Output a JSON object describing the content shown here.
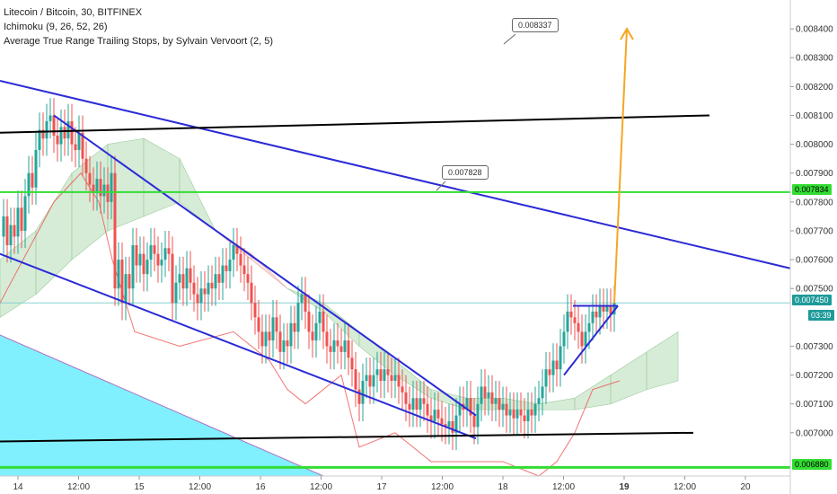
{
  "legend": {
    "symbol": "Litecoin / Bitcoin, 30, BITFINEX",
    "ichimoku": "Ichimoku (9, 26, 52, 26)",
    "atr": "Average True Range Trailing Stops, by Sylvain Vervoort (2, 5)"
  },
  "colors": {
    "candle_up": "#26a69a",
    "candle_down": "#ef5350",
    "trend_blue": "#2b2bd6",
    "horizontal_black": "#000000",
    "horizontal_green": "#33dd33",
    "arrow_orange": "#f5a623",
    "cloud_green": "#c8e6c9",
    "cloud_red": "#f8d7d7",
    "cyan_zone": "#80f0ff",
    "atr_line": "#ef5350",
    "price_line": "#88d0d0",
    "price_tag_bg": "#1e9a9a",
    "green_tag_bg": "#33dd33"
  },
  "price_tags": {
    "p7834": "0.007834",
    "p7450": "0.007450",
    "countdown": "03:39",
    "p6880": "0.006880"
  },
  "callouts": {
    "top": "0.008337",
    "mid": "0.007828"
  },
  "chart_data": {
    "type": "candlestick",
    "title": "Litecoin / Bitcoin, 30, BITFINEX",
    "xlabel": "",
    "ylabel": "",
    "ylim": [
      0.00685,
      0.0085
    ],
    "y_ticks": [
      "0.008400",
      "0.008300",
      "0.008200",
      "0.008100",
      "0.008000",
      "0.007900",
      "0.007800",
      "0.007700",
      "0.007600",
      "0.007500",
      "0.007300",
      "0.007200",
      "0.007100",
      "0.007000"
    ],
    "x_ticks": [
      "14",
      "12:00",
      "15",
      "12:00",
      "16",
      "12:00",
      "17",
      "12:00",
      "18",
      "12:00",
      "19",
      "12:00",
      "20"
    ],
    "close_path": [
      [
        0,
        0.00768
      ],
      [
        4,
        0.00775
      ],
      [
        8,
        0.00765
      ],
      [
        12,
        0.00772
      ],
      [
        16,
        0.00768
      ],
      [
        20,
        0.00778
      ],
      [
        24,
        0.0077
      ],
      [
        28,
        0.00782
      ],
      [
        32,
        0.0079
      ],
      [
        36,
        0.00785
      ],
      [
        40,
        0.00798
      ],
      [
        44,
        0.00805
      ],
      [
        48,
        0.00802
      ],
      [
        52,
        0.00808
      ],
      [
        56,
        0.0081
      ],
      [
        60,
        0.00803
      ],
      [
        64,
        0.008
      ],
      [
        68,
        0.00806
      ],
      [
        72,
        0.00802
      ],
      [
        76,
        0.00808
      ],
      [
        80,
        0.008
      ],
      [
        84,
        0.00798
      ],
      [
        88,
        0.00804
      ],
      [
        92,
        0.00795
      ],
      [
        96,
        0.0079
      ],
      [
        100,
        0.00786
      ],
      [
        104,
        0.00783
      ],
      [
        108,
        0.00788
      ],
      [
        112,
        0.00782
      ],
      [
        116,
        0.00786
      ],
      [
        120,
        0.0078
      ],
      [
        124,
        0.0079
      ],
      [
        128,
        0.0075
      ],
      [
        132,
        0.0076
      ],
      [
        136,
        0.00745
      ],
      [
        140,
        0.00755
      ],
      [
        144,
        0.0075
      ],
      [
        148,
        0.00765
      ],
      [
        152,
        0.00758
      ],
      [
        156,
        0.00762
      ],
      [
        160,
        0.00755
      ],
      [
        164,
        0.0076
      ],
      [
        168,
        0.00765
      ],
      [
        172,
        0.00762
      ],
      [
        176,
        0.00758
      ],
      [
        180,
        0.0076
      ],
      [
        184,
        0.00764
      ],
      [
        188,
        0.00762
      ],
      [
        192,
        0.00745
      ],
      [
        196,
        0.00752
      ],
      [
        200,
        0.00755
      ],
      [
        204,
        0.0075
      ],
      [
        208,
        0.00757
      ],
      [
        212,
        0.00752
      ],
      [
        216,
        0.00748
      ],
      [
        220,
        0.00745
      ],
      [
        224,
        0.0075
      ],
      [
        228,
        0.00748
      ],
      [
        232,
        0.00752
      ],
      [
        236,
        0.0075
      ],
      [
        240,
        0.00755
      ],
      [
        244,
        0.00752
      ],
      [
        248,
        0.00758
      ],
      [
        252,
        0.00756
      ],
      [
        256,
        0.0076
      ],
      [
        260,
        0.00765
      ],
      [
        264,
        0.00762
      ],
      [
        268,
        0.00758
      ],
      [
        272,
        0.00755
      ],
      [
        276,
        0.00752
      ],
      [
        280,
        0.00745
      ],
      [
        284,
        0.0074
      ],
      [
        288,
        0.00735
      ],
      [
        292,
        0.0073
      ],
      [
        296,
        0.00735
      ],
      [
        300,
        0.00732
      ],
      [
        304,
        0.0074
      ],
      [
        308,
        0.00735
      ],
      [
        312,
        0.00728
      ],
      [
        316,
        0.00732
      ],
      [
        320,
        0.0073
      ],
      [
        324,
        0.00738
      ],
      [
        328,
        0.00735
      ],
      [
        332,
        0.00745
      ],
      [
        336,
        0.00748
      ],
      [
        340,
        0.00742
      ],
      [
        344,
        0.00735
      ],
      [
        348,
        0.00732
      ],
      [
        352,
        0.00738
      ],
      [
        356,
        0.00742
      ],
      [
        360,
        0.00735
      ],
      [
        364,
        0.0073
      ],
      [
        368,
        0.00728
      ],
      [
        372,
        0.00732
      ],
      [
        376,
        0.0073
      ],
      [
        380,
        0.00728
      ],
      [
        384,
        0.00732
      ],
      [
        388,
        0.00726
      ],
      [
        392,
        0.00722
      ],
      [
        396,
        0.00715
      ],
      [
        400,
        0.0071
      ],
      [
        404,
        0.00718
      ],
      [
        408,
        0.0072
      ],
      [
        412,
        0.00716
      ],
      [
        416,
        0.0072
      ],
      [
        420,
        0.00722
      ],
      [
        424,
        0.00718
      ],
      [
        428,
        0.00722
      ],
      [
        432,
        0.0072
      ],
      [
        436,
        0.00718
      ],
      [
        440,
        0.0072
      ],
      [
        444,
        0.00716
      ],
      [
        448,
        0.00714
      ],
      [
        452,
        0.0071
      ],
      [
        456,
        0.00708
      ],
      [
        460,
        0.00712
      ],
      [
        464,
        0.00708
      ],
      [
        468,
        0.00712
      ],
      [
        472,
        0.0071
      ],
      [
        476,
        0.00706
      ],
      [
        480,
        0.00704
      ],
      [
        484,
        0.00708
      ],
      [
        488,
        0.00705
      ],
      [
        492,
        0.00703
      ],
      [
        496,
        0.00702
      ],
      [
        500,
        0.00704
      ],
      [
        504,
        0.007
      ],
      [
        508,
        0.00706
      ],
      [
        512,
        0.0071
      ],
      [
        516,
        0.00708
      ],
      [
        520,
        0.00712
      ],
      [
        524,
        0.00706
      ],
      [
        528,
        0.00702
      ],
      [
        532,
        0.0071
      ],
      [
        536,
        0.00716
      ],
      [
        540,
        0.00712
      ],
      [
        544,
        0.00714
      ],
      [
        548,
        0.0071
      ],
      [
        552,
        0.00712
      ],
      [
        556,
        0.00708
      ],
      [
        560,
        0.0071
      ],
      [
        564,
        0.00706
      ],
      [
        568,
        0.00708
      ],
      [
        572,
        0.00705
      ],
      [
        576,
        0.00708
      ],
      [
        580,
        0.00706
      ],
      [
        584,
        0.00704
      ],
      [
        588,
        0.00708
      ],
      [
        592,
        0.00706
      ],
      [
        596,
        0.0071
      ],
      [
        600,
        0.00712
      ],
      [
        604,
        0.00716
      ],
      [
        608,
        0.00722
      ],
      [
        612,
        0.0072
      ],
      [
        616,
        0.00725
      ],
      [
        620,
        0.00722
      ],
      [
        624,
        0.0073
      ],
      [
        628,
        0.00735
      ],
      [
        632,
        0.00742
      ],
      [
        636,
        0.0074
      ],
      [
        640,
        0.00738
      ],
      [
        644,
        0.00735
      ],
      [
        648,
        0.0073
      ],
      [
        652,
        0.00735
      ],
      [
        656,
        0.00738
      ],
      [
        660,
        0.00742
      ],
      [
        664,
        0.0074
      ],
      [
        668,
        0.00744
      ],
      [
        672,
        0.00742
      ],
      [
        676,
        0.00744
      ],
      [
        680,
        0.00741
      ],
      [
        684,
        0.00745
      ]
    ],
    "atr_path": [
      [
        0,
        0.00745
      ],
      [
        60,
        0.0078
      ],
      [
        90,
        0.0079
      ],
      [
        110,
        0.0078
      ],
      [
        125,
        0.0076
      ],
      [
        150,
        0.00735
      ],
      [
        200,
        0.0073
      ],
      [
        260,
        0.00735
      ],
      [
        300,
        0.00725
      ],
      [
        320,
        0.00715
      ],
      [
        340,
        0.0071
      ],
      [
        380,
        0.0072
      ],
      [
        400,
        0.00695
      ],
      [
        440,
        0.007
      ],
      [
        480,
        0.0069
      ],
      [
        520,
        0.0069
      ],
      [
        560,
        0.0069
      ],
      [
        600,
        0.00685
      ],
      [
        620,
        0.0069
      ],
      [
        640,
        0.007
      ],
      [
        660,
        0.00715
      ],
      [
        690,
        0.00718
      ]
    ],
    "cloud": {
      "x": [
        0,
        40,
        80,
        120,
        160,
        200,
        240,
        280,
        320,
        360,
        400,
        440,
        480,
        520,
        560,
        600,
        640,
        680,
        720,
        755
      ],
      "span_a": [
        0.0076,
        0.0077,
        0.0079,
        0.008,
        0.00802,
        0.00795,
        0.0077,
        0.0076,
        0.0075,
        0.00745,
        0.00735,
        0.00725,
        0.00715,
        0.00712,
        0.00712,
        0.0071,
        0.00712,
        0.0072,
        0.00728,
        0.00735
      ],
      "span_b": [
        0.0074,
        0.00748,
        0.0076,
        0.0077,
        0.00775,
        0.0078,
        0.0077,
        0.00762,
        0.0075,
        0.00742,
        0.0073,
        0.0072,
        0.00712,
        0.00708,
        0.00708,
        0.00708,
        0.00708,
        0.0071,
        0.00715,
        0.00718
      ]
    },
    "trendlines": [
      {
        "name": "channel-upper",
        "from": [
          0,
          0.00822
        ],
        "to": [
          880,
          0.00757
        ]
      },
      {
        "name": "wedge-top",
        "from": [
          60,
          0.0081
        ],
        "to": [
          530,
          0.00706
        ]
      },
      {
        "name": "wedge-bottom",
        "from": [
          0,
          0.00762
        ],
        "to": [
          530,
          0.00698
        ]
      },
      {
        "name": "black-high",
        "from": [
          0,
          0.00804
        ],
        "to": [
          790,
          0.0081
        ]
      },
      {
        "name": "black-low",
        "from": [
          0,
          0.00697
        ],
        "to": [
          772,
          0.007
        ]
      },
      {
        "name": "green-high",
        "from": [
          0,
          0.007834
        ],
        "to": [
          880,
          0.007834
        ]
      },
      {
        "name": "green-low",
        "from": [
          0,
          0.00688
        ],
        "to": [
          880,
          0.00688
        ]
      },
      {
        "name": "flag-top",
        "from": [
          638,
          0.00744
        ],
        "to": [
          688,
          0.00744
        ]
      },
      {
        "name": "flag-bottom",
        "from": [
          628,
          0.0072
        ],
        "to": [
          688,
          0.00744
        ]
      }
    ],
    "arrow": {
      "from": [
        684,
        0.00745
      ],
      "to": [
        698,
        0.0084
      ]
    },
    "grid": false,
    "legend_position": "top-left"
  }
}
